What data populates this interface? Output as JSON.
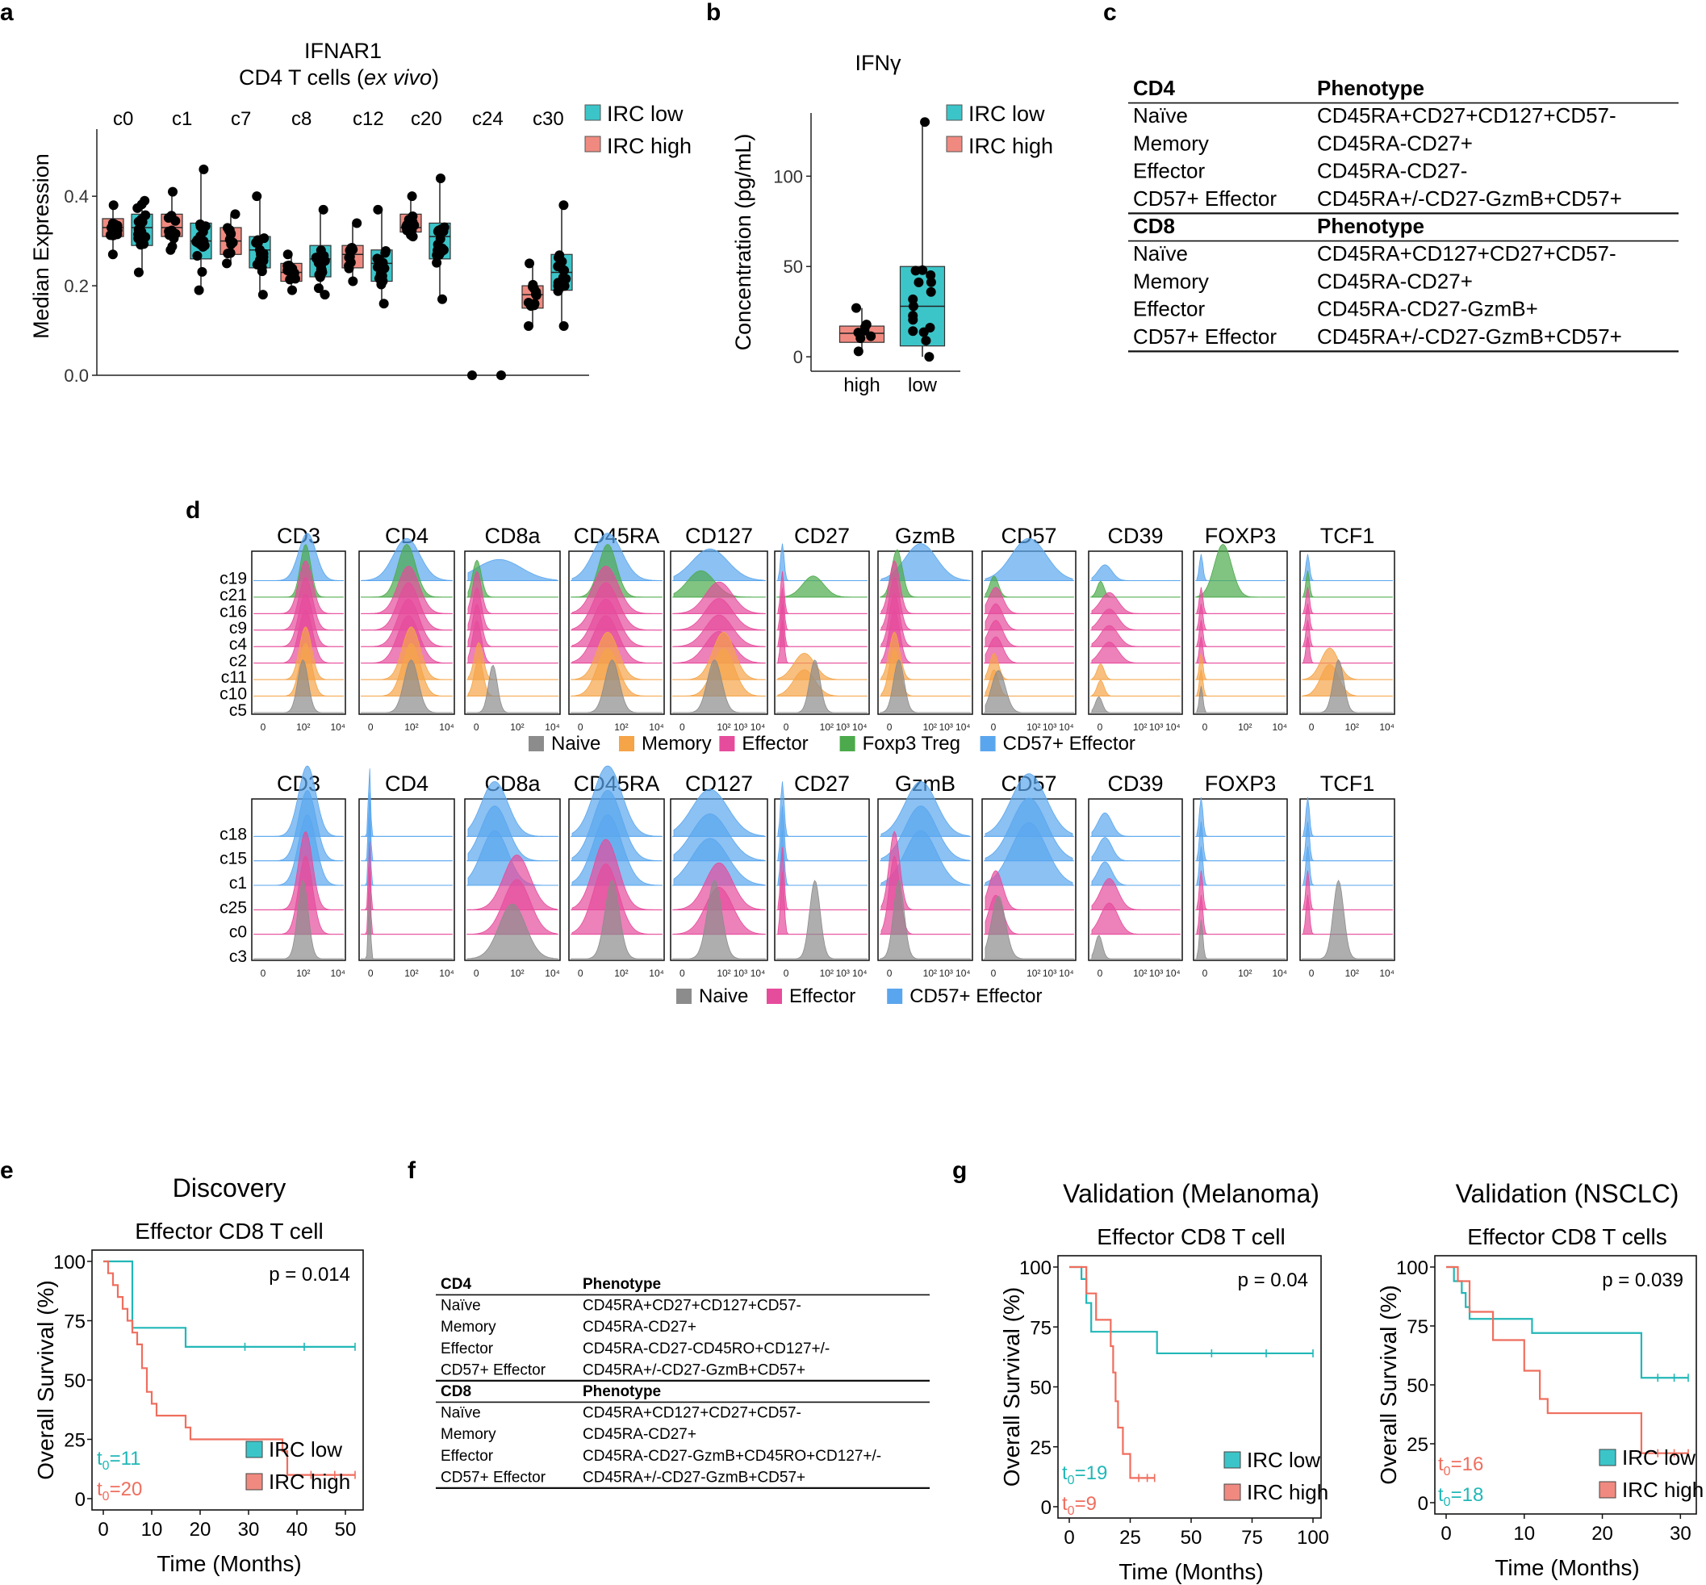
{
  "panels": {
    "a": "a",
    "b": "b",
    "c": "c",
    "d": "d",
    "e": "e",
    "f": "f",
    "g": "g"
  },
  "legend_irc": {
    "low": "IRC low",
    "high": "IRC high"
  },
  "colors": {
    "irc_low": "#3cc5c9",
    "irc_high": "#f08a80",
    "naive": "#8c8c8c",
    "memory": "#f5a448",
    "effector": "#e64c9c",
    "treg": "#4caa4c",
    "cd57": "#5aa6ee",
    "km_low": "#22b7b7",
    "km_high": "#ef6e5e"
  },
  "chart_data": [
    {
      "id": "a",
      "type": "box",
      "title_line1": "IFNAR1",
      "title_line2": "CD4 T cells (",
      "title_italic": "ex vivo",
      "title_close": ")",
      "ylabel": "Median Expression",
      "ylim": [
        0,
        0.55
      ],
      "yticks": [
        "0.0",
        "0.2",
        "0.4"
      ],
      "ytick_values": [
        0,
        0.2,
        0.4
      ],
      "categories": [
        "c0",
        "c1",
        "c7",
        "c8",
        "c12",
        "c20",
        "c24",
        "c30"
      ],
      "series": [
        {
          "name": "IRC high",
          "boxes": [
            [
              0.27,
              0.31,
              0.33,
              0.35,
              0.38
            ],
            [
              0.28,
              0.31,
              0.33,
              0.36,
              0.41
            ],
            [
              0.25,
              0.27,
              0.3,
              0.33,
              0.36
            ],
            [
              0.19,
              0.21,
              0.23,
              0.25,
              0.27
            ],
            [
              0.21,
              0.24,
              0.27,
              0.29,
              0.34
            ],
            [
              0.31,
              0.32,
              0.33,
              0.36,
              0.4
            ],
            [
              0,
              0,
              0,
              0,
              0
            ],
            [
              0.11,
              0.15,
              0.18,
              0.2,
              0.25
            ]
          ]
        },
        {
          "name": "IRC low",
          "boxes": [
            [
              0.23,
              0.29,
              0.33,
              0.36,
              0.39
            ],
            [
              0.19,
              0.26,
              0.3,
              0.34,
              0.46
            ],
            [
              0.18,
              0.24,
              0.28,
              0.31,
              0.4
            ],
            [
              0.18,
              0.22,
              0.26,
              0.29,
              0.37
            ],
            [
              0.16,
              0.21,
              0.25,
              0.28,
              0.37
            ],
            [
              0.17,
              0.26,
              0.31,
              0.34,
              0.44
            ],
            [
              0,
              0,
              0,
              0,
              0
            ],
            [
              0.11,
              0.19,
              0.23,
              0.27,
              0.38
            ]
          ]
        }
      ]
    },
    {
      "id": "b",
      "type": "box",
      "title": "IFNγ",
      "ylabel": "Concentration (pg/mL)",
      "ylim": [
        0,
        135
      ],
      "yticks": [
        "0",
        "50",
        "100"
      ],
      "ytick_values": [
        0,
        50,
        100
      ],
      "categories": [
        "high",
        "low"
      ],
      "boxes": [
        [
          3,
          8,
          13,
          17,
          27
        ],
        [
          0,
          6,
          28,
          50,
          130
        ]
      ]
    },
    {
      "id": "e",
      "type": "line",
      "title": "Discovery",
      "subtitle": "Effector CD8 T cell",
      "xlabel": "Time (Months)",
      "ylabel": "Overall Survival (%)",
      "p": "p = 0.014",
      "xlim": [
        0,
        52
      ],
      "ylim": [
        0,
        100
      ],
      "xticks": [
        "0",
        "10",
        "20",
        "30",
        "40",
        "50"
      ],
      "xtick_values": [
        0,
        10,
        20,
        30,
        40,
        50
      ],
      "yticks": [
        "0",
        "25",
        "50",
        "75",
        "100"
      ],
      "ytick_values": [
        0,
        25,
        50,
        75,
        100
      ],
      "t_low": "11",
      "t_high": "20",
      "series": [
        {
          "name": "IRC low",
          "x": [
            0,
            6,
            6,
            17,
            17,
            52
          ],
          "y": [
            100,
            100,
            72,
            72,
            64,
            64
          ]
        },
        {
          "name": "IRC high",
          "x": [
            0,
            1,
            2,
            3,
            4,
            5,
            6,
            7,
            8,
            9,
            10,
            11,
            12,
            17,
            18,
            24,
            37,
            38,
            52
          ],
          "y": [
            100,
            95,
            90,
            85,
            80,
            75,
            70,
            65,
            55,
            45,
            40,
            35,
            35,
            30,
            25,
            25,
            20,
            10,
            10
          ]
        }
      ]
    },
    {
      "id": "g1",
      "type": "line",
      "title": "Validation (Melanoma)",
      "subtitle": "Effector CD8 T cell",
      "xlabel": "Time (Months)",
      "ylabel": "Overall Survival (%)",
      "p": "p = 0.04",
      "xlim": [
        0,
        100
      ],
      "ylim": [
        0,
        100
      ],
      "xticks": [
        "0",
        "25",
        "50",
        "75",
        "100"
      ],
      "xtick_values": [
        0,
        25,
        50,
        75,
        100
      ],
      "yticks": [
        "0",
        "25",
        "50",
        "75",
        "100"
      ],
      "ytick_values": [
        0,
        25,
        50,
        75,
        100
      ],
      "t_low": "19",
      "t_high": "9",
      "series": [
        {
          "name": "IRC low",
          "x": [
            0,
            5,
            7,
            9,
            35,
            36,
            100
          ],
          "y": [
            100,
            95,
            85,
            73,
            73,
            64,
            64
          ]
        },
        {
          "name": "IRC high",
          "x": [
            0,
            7,
            11,
            17,
            18,
            19,
            20,
            22,
            25,
            35
          ],
          "y": [
            100,
            89,
            78,
            67,
            56,
            44,
            33,
            22,
            12,
            12
          ]
        }
      ]
    },
    {
      "id": "g2",
      "type": "line",
      "title": "Validation (NSCLC)",
      "subtitle": "Effector CD8 T cells",
      "xlabel": "Time (Months)",
      "ylabel": "Overall Survival (%)",
      "p": "p = 0.039",
      "xlim": [
        0,
        31
      ],
      "ylim": [
        0,
        100
      ],
      "xticks": [
        "0",
        "10",
        "20",
        "30"
      ],
      "xtick_values": [
        0,
        10,
        20,
        30
      ],
      "yticks": [
        "0",
        "25",
        "50",
        "75",
        "100"
      ],
      "ytick_values": [
        0,
        25,
        50,
        75,
        100
      ],
      "t_low": "18",
      "t_high": "16",
      "series": [
        {
          "name": "IRC low",
          "x": [
            0,
            1,
            2,
            2.5,
            3,
            11,
            24,
            25,
            31
          ],
          "y": [
            100,
            94,
            89,
            83,
            78,
            72,
            72,
            53,
            53
          ]
        },
        {
          "name": "IRC high",
          "x": [
            0,
            1.5,
            3,
            6,
            10,
            12,
            13,
            15,
            25,
            31
          ],
          "y": [
            100,
            94,
            81,
            69,
            56,
            44,
            38,
            38,
            21,
            21
          ]
        }
      ]
    }
  ],
  "table_c": {
    "cd4_head": "CD4",
    "cd8_head": "CD8",
    "phen_head": "Phenotype",
    "cd4_rows": [
      [
        "Naïve",
        "CD45RA+CD27+CD127+CD57-"
      ],
      [
        "Memory",
        "CD45RA-CD27+"
      ],
      [
        "Effector",
        "CD45RA-CD27-"
      ],
      [
        "CD57+ Effector",
        "CD45RA+/-CD27-GzmB+CD57+"
      ]
    ],
    "cd8_rows": [
      [
        "Naïve",
        "CD45RA+CD127+CD27+CD57-"
      ],
      [
        "Memory",
        "CD45RA-CD27+"
      ],
      [
        "Effector",
        "CD45RA-CD27-GzmB+"
      ],
      [
        "CD57+ Effector",
        "CD45RA+/-CD27-GzmB+CD57+"
      ]
    ]
  },
  "table_f": {
    "cd4_head": "CD4",
    "cd8_head": "CD8",
    "phen_head": "Phenotype",
    "cd4_rows": [
      [
        "Naïve",
        "CD45RA+CD27+CD127+CD57-"
      ],
      [
        "Memory",
        "CD45RA-CD27+"
      ],
      [
        "Effector",
        "CD45RA-CD27-CD45RO+CD127+/-"
      ],
      [
        "CD57+ Effector",
        "CD45RA+/-CD27-GzmB+CD57+"
      ]
    ],
    "cd8_rows": [
      [
        "Naïve",
        "CD45RA+CD127+CD27+CD57-"
      ],
      [
        "Memory",
        "CD45RA-CD27+"
      ],
      [
        "Effector",
        "CD45RA-CD27-GzmB+CD45RO+CD127+/-"
      ],
      [
        "CD57+ Effector",
        "CD45RA+/-CD27-GzmB+CD57+"
      ]
    ]
  },
  "histograms": {
    "markers": [
      "CD3",
      "CD4",
      "CD8a",
      "CD45RA",
      "CD127",
      "CD27",
      "GzmB",
      "CD57",
      "CD39",
      "FOXP3",
      "TCF1"
    ],
    "xticks": [
      "0",
      "10²",
      "10⁴"
    ],
    "xticks_wide": [
      "0",
      "10²",
      "10³",
      "10⁴"
    ],
    "top_clusters": [
      "c19",
      "c21",
      "c16",
      "c9",
      "c4",
      "c2",
      "c11",
      "c10",
      "c5"
    ],
    "top_classes": [
      "cd57",
      "treg",
      "effector",
      "effector",
      "effector",
      "effector",
      "memory",
      "memory",
      "naive"
    ],
    "bottom_clusters": [
      "c18",
      "c15",
      "c1",
      "c25",
      "c0",
      "c3"
    ],
    "bottom_classes": [
      "cd57",
      "cd57",
      "cd57",
      "effector",
      "effector",
      "naive"
    ],
    "legend_top": [
      [
        "naive",
        "Naive"
      ],
      [
        "memory",
        "Memory"
      ],
      [
        "effector",
        "Effector"
      ],
      [
        "treg",
        "Foxp3 Treg"
      ],
      [
        "cd57",
        "CD57+ Effector"
      ]
    ],
    "legend_bottom": [
      [
        "naive",
        "Naive"
      ],
      [
        "effector",
        "Effector"
      ],
      [
        "cd57",
        "CD57+ Effector"
      ]
    ]
  }
}
